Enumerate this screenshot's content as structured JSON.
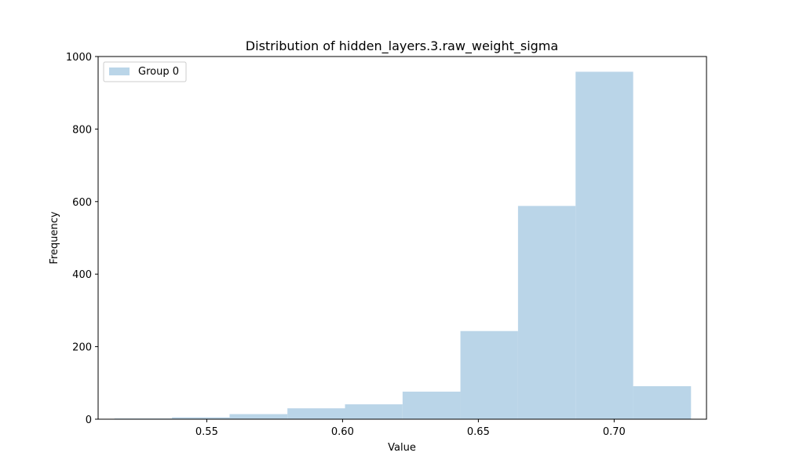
{
  "chart_data": {
    "type": "bar",
    "title": "Distribution of hidden_layers.3.raw_weight_sigma",
    "xlabel": "Value",
    "ylabel": "Frequency",
    "xlim": [
      0.51,
      0.734
    ],
    "ylim": [
      0,
      1000
    ],
    "xticks": [
      0.55,
      0.6,
      0.65,
      0.7
    ],
    "xtick_labels": [
      "0.55",
      "0.60",
      "0.65",
      "0.70"
    ],
    "yticks": [
      0,
      200,
      400,
      600,
      800,
      1000
    ],
    "ytick_labels": [
      "0",
      "200",
      "400",
      "600",
      "800",
      "1000"
    ],
    "bin_edges": [
      0.516,
      0.5372,
      0.5584,
      0.5797,
      0.6009,
      0.6221,
      0.6434,
      0.6646,
      0.6858,
      0.707,
      0.7283
    ],
    "series": [
      {
        "name": "Group 0",
        "color": "#bad5e8",
        "values": [
          2,
          5,
          14,
          30,
          41,
          76,
          243,
          588,
          958,
          91
        ]
      }
    ],
    "legend_position": "upper-left",
    "grid": false
  }
}
